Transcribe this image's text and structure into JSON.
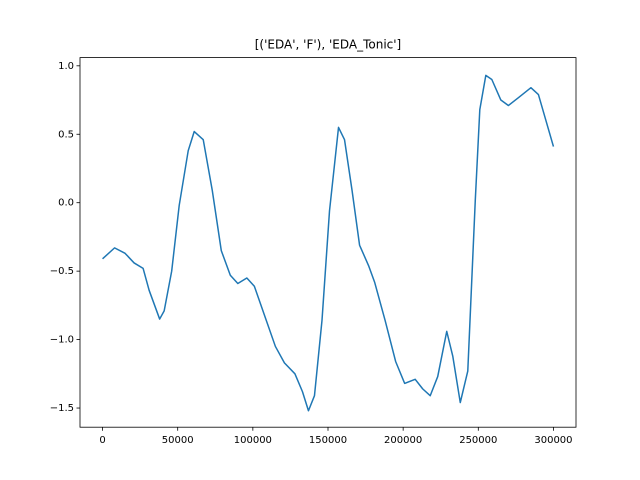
{
  "chart_data": {
    "type": "line",
    "title": "[('EDA', 'F'), 'EDA_Tonic']",
    "x": [
      0,
      8000,
      15000,
      21000,
      27000,
      31000,
      38000,
      41000,
      46000,
      51000,
      57000,
      61000,
      67000,
      73000,
      79000,
      85000,
      90000,
      96000,
      101000,
      108000,
      115000,
      121000,
      128000,
      133000,
      137000,
      141000,
      146000,
      151000,
      157000,
      161000,
      166000,
      171000,
      177000,
      181000,
      188000,
      195000,
      201000,
      208000,
      213000,
      218000,
      223000,
      229000,
      233000,
      238000,
      243000,
      248000,
      251000,
      255000,
      259000,
      265000,
      270000,
      277000,
      285000,
      290000,
      295000,
      300000
    ],
    "series": [
      {
        "color": "#1f77b4",
        "values": [
          -0.41,
          -0.33,
          -0.37,
          -0.44,
          -0.48,
          -0.64,
          -0.85,
          -0.79,
          -0.5,
          -0.02,
          0.38,
          0.52,
          0.46,
          0.09,
          -0.35,
          -0.53,
          -0.59,
          -0.55,
          -0.61,
          -0.83,
          -1.05,
          -1.17,
          -1.25,
          -1.38,
          -1.52,
          -1.41,
          -0.86,
          -0.06,
          0.55,
          0.46,
          0.09,
          -0.31,
          -0.46,
          -0.58,
          -0.86,
          -1.16,
          -1.32,
          -1.29,
          -1.36,
          -1.41,
          -1.27,
          -0.94,
          -1.12,
          -1.46,
          -1.23,
          0.02,
          0.68,
          0.93,
          0.9,
          0.75,
          0.71,
          0.77,
          0.84,
          0.79,
          0.6,
          0.41
        ]
      }
    ],
    "xlim": [
      -15000,
      315000
    ],
    "xticks": [
      0,
      50000,
      100000,
      150000,
      200000,
      250000,
      300000
    ],
    "ylim": [
      -1.64,
      1.06
    ],
    "yticks": [
      {
        "value": -1.5,
        "label": "−1.5"
      },
      {
        "value": -1.0,
        "label": "−1.0"
      },
      {
        "value": -0.5,
        "label": "−0.5"
      },
      {
        "value": 0.0,
        "label": "0.0"
      },
      0.5,
      {
        "value": 1.0,
        "label": "1.0"
      }
    ],
    "grid": false
  }
}
